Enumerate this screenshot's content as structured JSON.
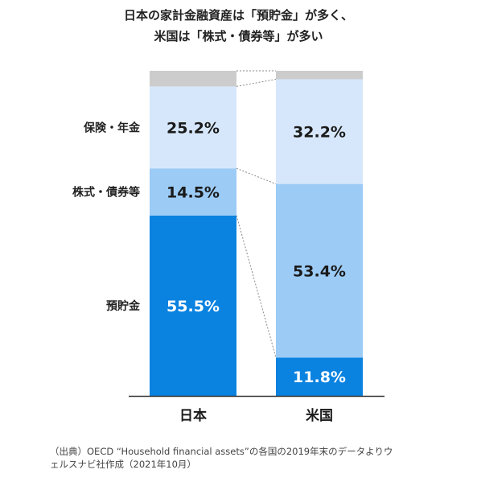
{
  "title_lines": [
    "日本の家計金融資産は「預貯金」が多く、",
    "米国は「株式・債券等」が多い"
  ],
  "source_lines": [
    "（出典）OECD “Household financial assets”の各国の2019年末のデータよりウ",
    "ェルスナビ社作成（2021年10月）"
  ],
  "colors": {
    "other": "#cccccc",
    "insurance": "#d6e7fb",
    "stocks": "#9ccbf5",
    "deposits": "#0a82e0",
    "connector": "#8a8a8a",
    "axis": "#333333"
  },
  "chart_data": {
    "type": "bar",
    "stacked": true,
    "categories": [
      "日本",
      "米国"
    ],
    "series": [
      {
        "name": "預貯金",
        "values": [
          55.5,
          11.8
        ],
        "labels": [
          "55.5%",
          "11.8%"
        ]
      },
      {
        "name": "株式・債券等",
        "values": [
          14.5,
          53.4
        ],
        "labels": [
          "14.5%",
          "53.4%"
        ]
      },
      {
        "name": "保険・年金",
        "values": [
          25.2,
          32.2
        ],
        "labels": [
          "25.2%",
          "32.2%"
        ]
      },
      {
        "name": "",
        "values": [
          4.8,
          2.6
        ],
        "labels": [
          "",
          ""
        ]
      }
    ],
    "ylim": [
      0,
      100
    ]
  }
}
